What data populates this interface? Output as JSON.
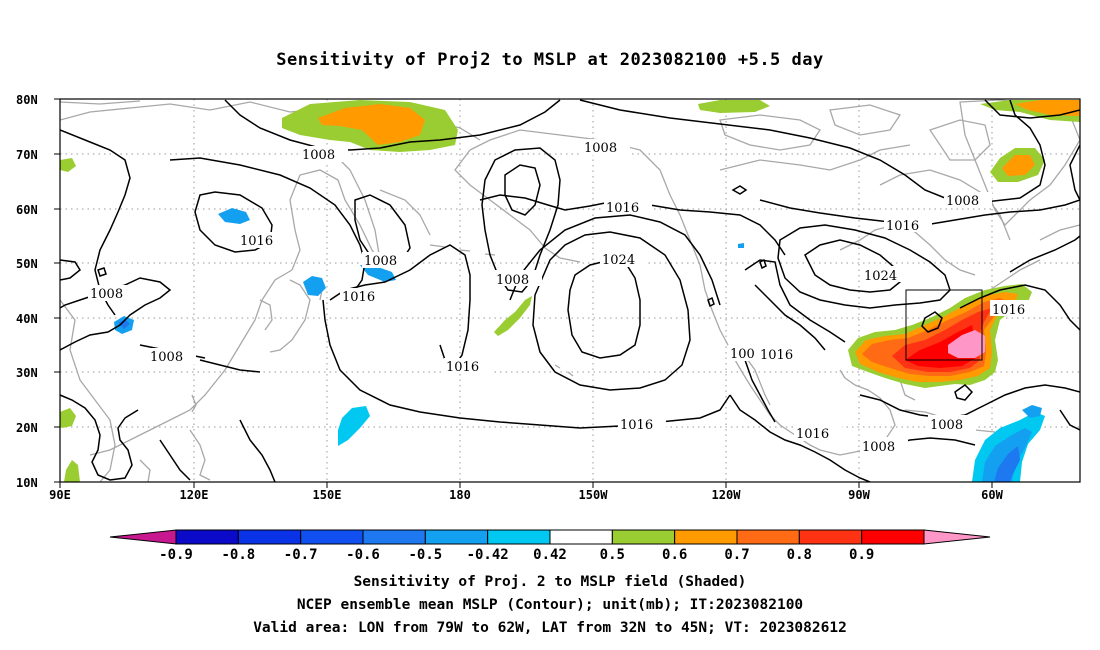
{
  "title": "Sensitivity of Proj2 to MSLP at 2023082100 +5.5 day",
  "lat_labels": [
    "80N",
    "70N",
    "60N",
    "50N",
    "40N",
    "30N",
    "20N",
    "10N"
  ],
  "lon_labels": [
    "90E",
    "120E",
    "150E",
    "180",
    "150W",
    "120W",
    "90W",
    "60W"
  ],
  "contour_labels": [
    {
      "text": "1008",
      "region": "north-pacific-upper"
    },
    {
      "text": "1008",
      "region": "bering-sea"
    },
    {
      "text": "1008",
      "region": "hudson-bay"
    },
    {
      "text": "1016",
      "region": "mongolia"
    },
    {
      "text": "1016",
      "region": "alaska-gulf"
    },
    {
      "text": "1016",
      "region": "canada"
    },
    {
      "text": "1008",
      "region": "central-asia"
    },
    {
      "text": "1008",
      "region": "sea-of-okhotsk"
    },
    {
      "text": "1008",
      "region": "aleutian-low"
    },
    {
      "text": "1024",
      "region": "pacific-high"
    },
    {
      "text": "1024",
      "region": "north-america-high"
    },
    {
      "text": "1016",
      "region": "japan-east"
    },
    {
      "text": "1016",
      "region": "atlantic-east"
    },
    {
      "text": "1008",
      "region": "india"
    },
    {
      "text": "1016",
      "region": "central-pacific"
    },
    {
      "text": "100",
      "region": "baja-coast"
    },
    {
      "text": "1016",
      "region": "us-southwest"
    },
    {
      "text": "1016",
      "region": "eastern-pacific"
    },
    {
      "text": "1016",
      "region": "mexico"
    },
    {
      "text": "1008",
      "region": "gulf-of-mexico"
    },
    {
      "text": "1008",
      "region": "caribbean"
    }
  ],
  "colorbar": {
    "labels": [
      "-0.9",
      "-0.8",
      "-0.7",
      "-0.6",
      "-0.5",
      "-0.42",
      "0.42",
      "0.5",
      "0.6",
      "0.7",
      "0.8",
      "0.9"
    ],
    "colors": [
      "#c81890",
      "#0a0ac8",
      "#0a32e6",
      "#1050f0",
      "#1e78f0",
      "#14a0f0",
      "#00c8f0",
      "#ffffff",
      "#9acd32",
      "#ff9a00",
      "#ff6a14",
      "#ff3214",
      "#ff0000",
      "#ff96c8"
    ]
  },
  "captions": [
    "Sensitivity of Proj. 2 to MSLP field (Shaded)",
    "NCEP ensemble mean MSLP (Contour); unit(mb); IT:2023082100",
    "Valid area: LON from 79W to 62W, LAT from 32N to 45N; VT: 2023082612"
  ]
}
